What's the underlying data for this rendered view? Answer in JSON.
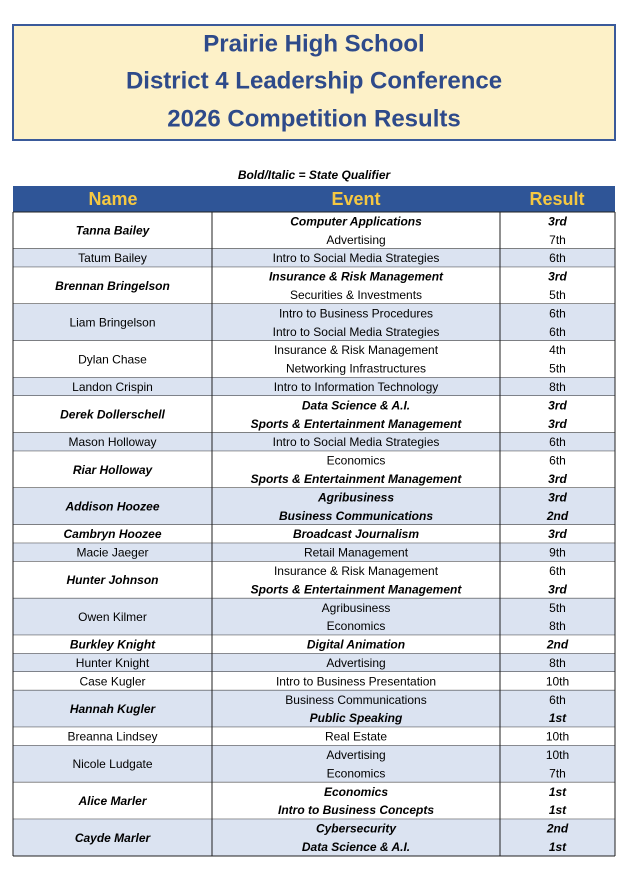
{
  "header": {
    "lines": [
      "Prairie High School",
      "District 4 Leadership Conference",
      "2026 Competition Results"
    ]
  },
  "note": "Bold/Italic = State Qualifier",
  "table": {
    "columns": [
      "Name",
      "Event",
      "Result"
    ],
    "rows": [
      {
        "name": "Tanna Bailey",
        "events": [
          {
            "event": "Computer Applications",
            "result": "3rd",
            "qualifier": true
          },
          {
            "event": "Advertising",
            "result": "7th",
            "qualifier": false
          }
        ]
      },
      {
        "name": "Tatum Bailey",
        "events": [
          {
            "event": "Intro to Social Media Strategies",
            "result": "6th",
            "qualifier": false
          }
        ]
      },
      {
        "name": "Brennan Bringelson",
        "events": [
          {
            "event": "Insurance & Risk Management",
            "result": "3rd",
            "qualifier": true
          },
          {
            "event": "Securities & Investments",
            "result": "5th",
            "qualifier": false
          }
        ]
      },
      {
        "name": "Liam Bringelson",
        "events": [
          {
            "event": "Intro to Business Procedures",
            "result": "6th",
            "qualifier": false
          },
          {
            "event": "Intro to Social Media Strategies",
            "result": "6th",
            "qualifier": false
          }
        ]
      },
      {
        "name": "Dylan Chase",
        "events": [
          {
            "event": "Insurance & Risk Management",
            "result": "4th",
            "qualifier": false
          },
          {
            "event": "Networking Infrastructures",
            "result": "5th",
            "qualifier": false
          }
        ]
      },
      {
        "name": "Landon Crispin",
        "events": [
          {
            "event": "Intro to Information Technology",
            "result": "8th",
            "qualifier": false
          }
        ]
      },
      {
        "name": "Derek Dollerschell",
        "events": [
          {
            "event": "Data Science & A.I.",
            "result": "3rd",
            "qualifier": true
          },
          {
            "event": "Sports & Entertainment Management",
            "result": "3rd",
            "qualifier": true
          }
        ]
      },
      {
        "name": "Mason Holloway",
        "events": [
          {
            "event": "Intro to Social Media Strategies",
            "result": "6th",
            "qualifier": false
          }
        ]
      },
      {
        "name": "Riar Holloway",
        "events": [
          {
            "event": "Economics",
            "result": "6th",
            "qualifier": false
          },
          {
            "event": "Sports & Entertainment Management",
            "result": "3rd",
            "qualifier": true
          }
        ]
      },
      {
        "name": "Addison Hoozee",
        "events": [
          {
            "event": "Agribusiness",
            "result": "3rd",
            "qualifier": true
          },
          {
            "event": "Business Communications",
            "result": "2nd",
            "qualifier": true
          }
        ]
      },
      {
        "name": "Cambryn Hoozee",
        "events": [
          {
            "event": "Broadcast Journalism",
            "result": "3rd",
            "qualifier": true
          }
        ]
      },
      {
        "name": "Macie Jaeger",
        "events": [
          {
            "event": "Retail Management",
            "result": "9th",
            "qualifier": false
          }
        ]
      },
      {
        "name": "Hunter Johnson",
        "events": [
          {
            "event": "Insurance & Risk Management",
            "result": "6th",
            "qualifier": false
          },
          {
            "event": "Sports & Entertainment Management",
            "result": "3rd",
            "qualifier": true
          }
        ]
      },
      {
        "name": "Owen Kilmer",
        "events": [
          {
            "event": "Agribusiness",
            "result": "5th",
            "qualifier": false
          },
          {
            "event": "Economics",
            "result": "8th",
            "qualifier": false
          }
        ]
      },
      {
        "name": "Burkley Knight",
        "events": [
          {
            "event": "Digital Animation",
            "result": "2nd",
            "qualifier": true
          }
        ]
      },
      {
        "name": "Hunter Knight",
        "events": [
          {
            "event": "Advertising",
            "result": "8th",
            "qualifier": false
          }
        ]
      },
      {
        "name": "Case Kugler",
        "events": [
          {
            "event": "Intro to Business Presentation",
            "result": "10th",
            "qualifier": false
          }
        ]
      },
      {
        "name": "Hannah Kugler",
        "events": [
          {
            "event": "Business Communications",
            "result": "6th",
            "qualifier": false
          },
          {
            "event": "Public Speaking",
            "result": "1st",
            "qualifier": true
          }
        ]
      },
      {
        "name": "Breanna Lindsey",
        "events": [
          {
            "event": "Real Estate",
            "result": "10th",
            "qualifier": false
          }
        ]
      },
      {
        "name": "Nicole Ludgate",
        "events": [
          {
            "event": "Advertising",
            "result": "10th",
            "qualifier": false
          },
          {
            "event": "Economics",
            "result": "7th",
            "qualifier": false
          }
        ]
      },
      {
        "name": "Alice Marler",
        "events": [
          {
            "event": "Economics",
            "result": "1st",
            "qualifier": true
          },
          {
            "event": "Intro to Business Concepts",
            "result": "1st",
            "qualifier": true
          }
        ]
      },
      {
        "name": "Cayde Marler",
        "events": [
          {
            "event": "Cybersecurity",
            "result": "2nd",
            "qualifier": true
          },
          {
            "event": "Data Science & A.I.",
            "result": "1st",
            "qualifier": true
          }
        ]
      }
    ]
  }
}
